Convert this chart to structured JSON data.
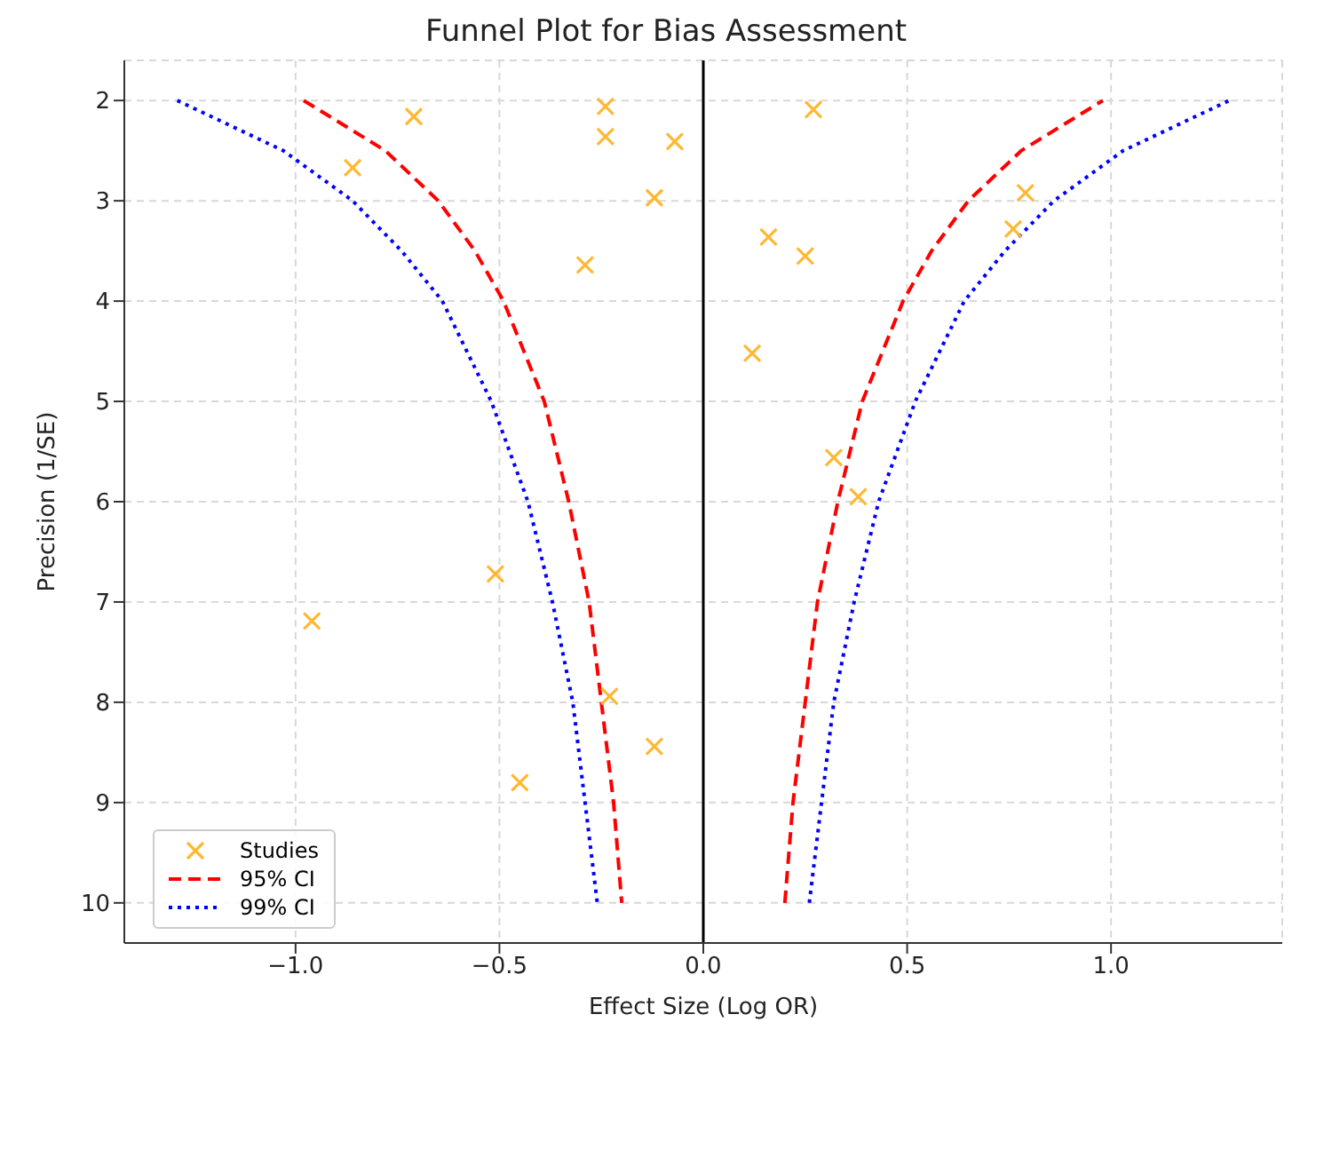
{
  "chart_data": {
    "type": "scatter",
    "title": "Funnel Plot for Bias Assessment",
    "xlabel": "Effect Size (Log OR)",
    "ylabel": "Precision (1/SE)",
    "xlim": [
      -1.42,
      1.42
    ],
    "xticks": [
      {
        "value": -1,
        "label": "−1.0"
      },
      {
        "value": -0.5,
        "label": "−0.5"
      },
      {
        "value": 0,
        "label": "0.0"
      },
      {
        "value": 0.5,
        "label": "0.5"
      },
      {
        "value": 1,
        "label": "1.0"
      }
    ],
    "ylim": [
      10.4,
      1.6
    ],
    "yticks": [
      2,
      3,
      4,
      5,
      6,
      7,
      8,
      9,
      10
    ],
    "grid": true,
    "legend": "bottom left",
    "ref_lines": [
      {
        "axis": "x",
        "value": 0,
        "color": "#000000"
      }
    ],
    "series": [
      {
        "name": "Studies",
        "marker": "cross",
        "color": "#ffb833",
        "x": [
          -0.24,
          -0.71,
          -0.24,
          -0.07,
          -0.86,
          -0.12,
          -0.29,
          0.27,
          0.79,
          0.76,
          0.16,
          0.25,
          0.12,
          0.32,
          0.38,
          -0.51,
          -0.96,
          -0.23,
          -0.12,
          -0.45
        ],
        "values": [
          2.06,
          2.16,
          2.36,
          2.41,
          2.67,
          2.97,
          3.64,
          2.09,
          2.92,
          3.28,
          3.36,
          3.55,
          4.52,
          5.56,
          5.95,
          6.72,
          7.19,
          7.94,
          8.44,
          8.8
        ]
      },
      {
        "name": "95% CI",
        "type": "line",
        "line_style": "dashed",
        "color": "#ff0000",
        "x": [
          -0.98,
          -0.78,
          -0.65,
          -0.56,
          -0.49,
          -0.39,
          -0.33,
          -0.28,
          -0.25,
          -0.22,
          -0.2
        ],
        "values": [
          2,
          2.5,
          3,
          3.5,
          4,
          5,
          6,
          7,
          8,
          9,
          10
        ]
      },
      {
        "type": "line",
        "line_style": "dashed",
        "color": "#ff0000",
        "x": [
          0.2,
          0.22,
          0.25,
          0.28,
          0.33,
          0.39,
          0.49,
          0.56,
          0.65,
          0.78,
          0.98
        ],
        "values": [
          10,
          9,
          8,
          7,
          6,
          5,
          4,
          3.5,
          3,
          2.5,
          2
        ]
      },
      {
        "name": "99% CI",
        "type": "line",
        "line_style": "dotted",
        "color": "#0000ff",
        "x": [
          -1.29,
          -1.03,
          -0.86,
          -0.74,
          -0.64,
          -0.52,
          -0.43,
          -0.37,
          -0.32,
          -0.29,
          -0.26
        ],
        "values": [
          2,
          2.5,
          3,
          3.5,
          4,
          5,
          6,
          7,
          8,
          9,
          10
        ]
      },
      {
        "type": "line",
        "line_style": "dotted",
        "color": "#0000ff",
        "x": [
          0.26,
          0.29,
          0.32,
          0.37,
          0.43,
          0.52,
          0.64,
          0.74,
          0.86,
          1.03,
          1.29
        ],
        "values": [
          10,
          9,
          8,
          7,
          6,
          5,
          4,
          3.5,
          3,
          2.5,
          2
        ]
      }
    ]
  }
}
